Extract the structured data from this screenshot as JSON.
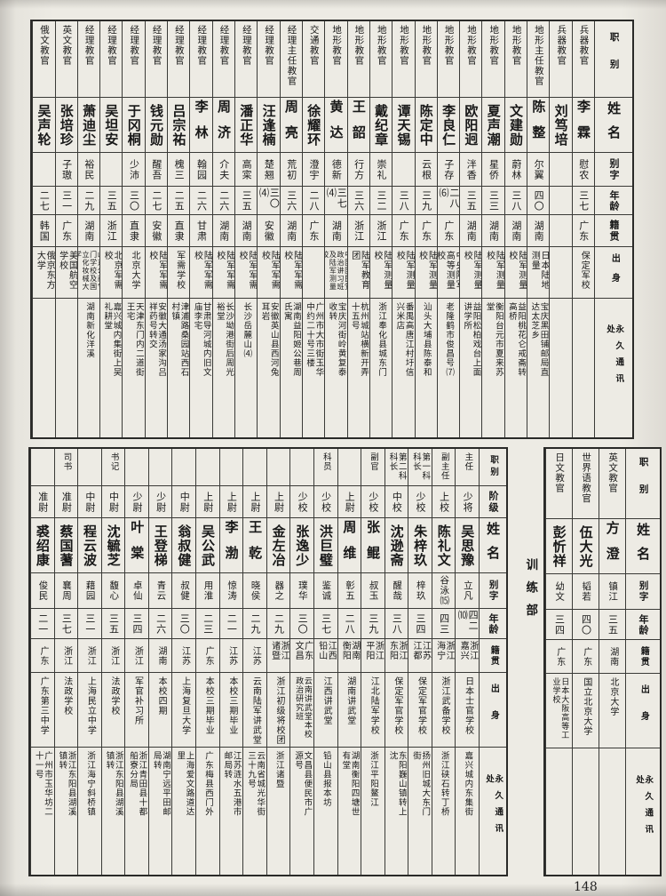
{
  "page_number": "148",
  "section_label": "训练部",
  "top_table": {
    "headers": {
      "job": "职别",
      "name": "姓名",
      "zi": "别字",
      "age": "年龄",
      "origin": "籍贯",
      "background": "出身",
      "address": "永久通讯处"
    },
    "rows": [
      {
        "job": "兵器教官",
        "name": "李霖",
        "zi": "慰农",
        "age": "三七",
        "origin": "广东",
        "background": "保定军校",
        "address": ""
      },
      {
        "job": "兵器教官",
        "name": "刘笃培",
        "zi": "",
        "age": "",
        "origin": "",
        "background": "",
        "address": ""
      },
      {
        "job": "地形主任教官",
        "name": "陈整",
        "zi": "尔翼",
        "age": "四〇",
        "origin": "湖南",
        "background": "日本陆地测量",
        "address": "宝庆黑田铺邮局直达太芝乡"
      },
      {
        "job": "地形教官",
        "name": "文建勋",
        "zi": "蔚林",
        "age": "三八",
        "origin": "湖南",
        "background": "陆军测量校",
        "address": "益阳桃花仑戒斋转高桥"
      },
      {
        "job": "地形教官",
        "name": "夏声潮",
        "zi": "星侨",
        "age": "三三",
        "origin": "湖南",
        "background": "陆军测量校",
        "address": "衡阳台元市夏来苏堂"
      },
      {
        "job": "地形教官",
        "name": "欧阳迥",
        "zi": "泮香",
        "age": "三五",
        "origin": "湖南",
        "background": "陆军测量校",
        "address": "益阳松柏戏台上面讲学所"
      },
      {
        "job": "地形教官",
        "name": "李良仁",
        "zi": "子存",
        "age": "二八⑹",
        "origin": "广东",
        "background": "中央陆军高等测量校",
        "address": "老隆鹤市俊昌号⑺"
      },
      {
        "job": "地形教官",
        "name": "陈定中",
        "zi": "云根",
        "age": "三九",
        "origin": "广东",
        "background": "陆军测量校",
        "address": "汕头大埔县陈泰和"
      },
      {
        "job": "地形教官",
        "name": "谭天锡",
        "zi": "",
        "age": "三八",
        "origin": "广东",
        "background": "陆军测量校",
        "address": "番禺高唐江村圩信兴米店"
      },
      {
        "job": "地形教官",
        "name": "戴纪章",
        "zi": "崇礼",
        "age": "三二",
        "origin": "浙江",
        "background": "陆军测量校",
        "address": "浙江奉化县城东门"
      },
      {
        "job": "地形教官",
        "name": "王韶",
        "zi": "行方",
        "age": "三六",
        "origin": "浙江",
        "background": "陆军教育团",
        "address": "杭州城站横新开弄十五号"
      },
      {
        "job": "地形教官",
        "name": "黄达",
        "zi": "德新",
        "age": "三七⑷",
        "origin": "湖南",
        "background": "中国国民党政治讲习班及陆军测量校",
        "address": "宝庆河街岭黄复泰收转"
      },
      {
        "job": "交通教官",
        "name": "徐耀环",
        "zi": "澄宇",
        "age": "二八",
        "origin": "广东",
        "background": "",
        "address": "广州市大市街玉华中约二十号三楼"
      },
      {
        "job": "经理主任教官",
        "name": "周亮",
        "zi": "荒初",
        "age": "三六",
        "origin": "湖南",
        "background": "陆军军需校",
        "address": "湖南益阳姬公巷周氏寓"
      },
      {
        "job": "经理教官",
        "name": "汪逢楠",
        "zi": "楚翘",
        "age": "三〇⑷",
        "origin": "安徽",
        "background": "陆军军需校",
        "address": "安徽英山县西河兔耳岩"
      },
      {
        "job": "经理教官",
        "name": "潘正华",
        "zi": "高寀",
        "age": "三五",
        "origin": "湖南",
        "background": "陆军军需校",
        "address": "长沙岳麓山⑷"
      },
      {
        "job": "经理教官",
        "name": "周济",
        "zi": "介夫",
        "age": "二六",
        "origin": "湖南",
        "background": "陆军军需校",
        "address": "长沙坳港街后周光裕堂"
      },
      {
        "job": "经理教官",
        "name": "李林",
        "zi": "翰园",
        "age": "二六",
        "origin": "甘肃",
        "background": "陆军军需校",
        "address": "甘肃导河城内旧文庙李宅"
      },
      {
        "job": "经理教官",
        "name": "吕宗祐",
        "zi": "槐三",
        "age": "二五",
        "origin": "直隶",
        "background": "军需学校",
        "address": "津浦路桑园站西石村镇"
      },
      {
        "job": "经理教官",
        "name": "钱元勋",
        "zi": "醒吾",
        "age": "二七",
        "origin": "安徽",
        "background": "陆军军需校",
        "address": "安徽大通汤家沟吕祥药号转交"
      },
      {
        "job": "经理教官",
        "name": "于冈桐",
        "zi": "少沛",
        "age": "三〇",
        "origin": "直隶",
        "background": "北京大学",
        "address": "天津东门内二道街王宅"
      },
      {
        "job": "经理教官",
        "name": "吴坦安",
        "zi": "",
        "age": "三五",
        "origin": "浙江",
        "background": "北京军需校",
        "address": "嘉兴城内集街上吴礼耕堂"
      },
      {
        "job": "经理教官",
        "name": "萧迪尘",
        "zi": "裕民",
        "age": "二九",
        "origin": "湖南",
        "background": "山东公商专门学校及国立化妆械大学",
        "address": "湖南新化洋溪"
      },
      {
        "job": "英文教官",
        "name": "张培珍",
        "zi": "子璈",
        "age": "三一",
        "origin": "广东",
        "background": "美国航空学校",
        "address": ""
      },
      {
        "job": "俄文教官",
        "name": "吴声轮",
        "zi": "",
        "age": "二七",
        "origin": "韩国",
        "background": "俄京东方大学",
        "address": ""
      }
    ]
  },
  "lower_right_table": {
    "headers": {
      "job": "职别",
      "name": "姓名",
      "zi": "别字",
      "age": "年龄",
      "origin": "籍贯",
      "background": "出身",
      "address": "永久通讯处"
    },
    "rows": [
      {
        "job": "英文教官",
        "name": "方澄",
        "zi": "镇江",
        "age": "三五",
        "origin": "湖南",
        "background": "北京大学",
        "address": ""
      },
      {
        "job": "世界语教官",
        "name": "伍大光",
        "zi": "韬若",
        "age": "四〇",
        "origin": "广东",
        "background": "国立北京大学",
        "address": ""
      },
      {
        "job": "日文教官",
        "name": "彭忻祥",
        "zi": "幼文",
        "age": "三四",
        "origin": "广东",
        "background": "日本大阪高等工业学校",
        "address": ""
      }
    ]
  },
  "training_table": {
    "headers": {
      "job": "职别",
      "rank": "阶级",
      "name": "姓名",
      "zi": "别字",
      "age": "年龄",
      "origin": "籍贯",
      "background": "出身",
      "address": "永久通讯处"
    },
    "rows": [
      {
        "job": "主任",
        "rank": "少将",
        "name": "吴思豫",
        "zi": "立凡",
        "age": "四二⑽",
        "origin": "浙江 嘉兴",
        "background": "日本士官学校",
        "address": "嘉兴城内东集街"
      },
      {
        "job": "副主任",
        "rank": "上校",
        "name": "陈礼文",
        "zi": "谷泳⒂",
        "age": "四三",
        "origin": "浙江 海宁",
        "background": "浙江武备学校",
        "address": "浙江硖石转丁桥"
      },
      {
        "job": "第一科 科长",
        "rank": "少校",
        "name": "朱梓玖",
        "zi": "梓玖",
        "age": "三四",
        "origin": "江苏 江都",
        "background": "保定军官学校",
        "address": "扬州旧城大东门街"
      },
      {
        "job": "第二科 科长",
        "rank": "中校",
        "name": "沈逊斋",
        "zi": "醒哉",
        "age": "三八",
        "origin": "浙江 东阳",
        "background": "保定军官学校",
        "address": "东阳巍山镇转上沈"
      },
      {
        "job": "副官",
        "rank": "少校",
        "name": "张鲲",
        "zi": "叔玉",
        "age": "三九",
        "origin": "浙江 平阳",
        "background": "江北陆军学校",
        "address": "浙江平阳鳌江"
      },
      {
        "job": "",
        "rank": "上尉",
        "name": "周维",
        "zi": "彰五",
        "age": "二八",
        "origin": "湖南 衡阳",
        "background": "湖南讲武堂",
        "address": "湖南衡阳四塘世有堂"
      },
      {
        "job": "科员",
        "rank": "少校",
        "name": "洪巨璧",
        "zi": "鉴诚",
        "age": "三七",
        "origin": "江西 铅山",
        "background": "江西讲武堂",
        "address": "铅山县报本坊"
      },
      {
        "job": "",
        "rank": "少校",
        "name": "张逸少",
        "zi": "璞华",
        "age": "三〇",
        "origin": "广东 文昌",
        "background": "云南讲武堂本校政治研究班",
        "address": "文昌县便民市广源号"
      },
      {
        "job": "",
        "rank": "上尉",
        "name": "金左冶",
        "zi": "器之",
        "age": "二九",
        "origin": "浙江 诸暨",
        "background": "浙江初级将校团",
        "address": "浙江诸暨"
      },
      {
        "job": "",
        "rank": "上尉",
        "name": "王乾",
        "zi": "晓侯",
        "age": "二九",
        "origin": "江苏",
        "background": "云南陆军讲武堂",
        "address": "云南省城光华街三十九号"
      },
      {
        "job": "",
        "rank": "上尉",
        "name": "李渤",
        "zi": "惊涛",
        "age": "二一",
        "origin": "江苏",
        "background": "本校三期毕业",
        "address": "江苏涟水五港市邮局转"
      },
      {
        "job": "",
        "rank": "上尉",
        "name": "吴公武",
        "zi": "用淮",
        "age": "二三",
        "origin": "广东",
        "background": "本校三期毕业",
        "address": "广东梅县西门外"
      },
      {
        "job": "",
        "rank": "中尉",
        "name": "翁叔健",
        "zi": "叔健",
        "age": "三〇",
        "origin": "江苏",
        "background": "上海复旦大学",
        "address": "上海爱文路道达里"
      },
      {
        "job": "",
        "rank": "少尉",
        "name": "王登梯",
        "zi": "青云",
        "age": "二六",
        "origin": "湖南",
        "background": "本校四期",
        "address": "湖南宁远平田邮局转"
      },
      {
        "job": "",
        "rank": "少尉",
        "name": "叶棠",
        "zi": "卓仙",
        "age": "三四",
        "origin": "浙江",
        "background": "军官补习所",
        "address": "浙江青田县十都船寮分局"
      },
      {
        "job": "书记",
        "rank": "中尉",
        "name": "沈毓芝",
        "zi": "馥心",
        "age": "三五",
        "origin": "浙江",
        "background": "法政学校",
        "address": "浙江东阳县湖溪镇转"
      },
      {
        "job": "",
        "rank": "中尉",
        "name": "程云波",
        "zi": "藉园",
        "age": "三一",
        "origin": "浙江",
        "background": "上海民立中学",
        "address": "浙江海宁斜桥镇"
      },
      {
        "job": "司书",
        "rank": "准尉",
        "name": "蔡国蓍",
        "zi": "襄周",
        "age": "三七",
        "origin": "浙江",
        "background": "法政学校",
        "address": "浙江东阳县湖溪镇转"
      },
      {
        "job": "",
        "rank": "准尉",
        "name": "裘绍康",
        "zi": "俊民",
        "age": "二一",
        "origin": "广东",
        "background": "广东第三中学",
        "address": "广州市玉华坊二十一号"
      }
    ]
  }
}
